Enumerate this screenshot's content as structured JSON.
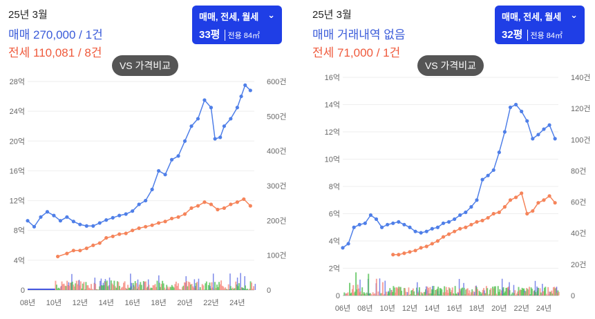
{
  "left": {
    "month": "25년 3월",
    "sale_summary": "매매 270,000 / 1건",
    "lease_summary": "전세 110,081 / 8건",
    "selector": {
      "types": "매매, 전세, 월세",
      "pyeong": "33평",
      "area": "전용 84㎡"
    },
    "vs_button": "VS 가격비교",
    "chevron_icon": "chevron-down-icon"
  },
  "right": {
    "month": "25년 3월",
    "sale_summary": "매매 거래내역 없음",
    "lease_summary": "전세 71,000 / 1건",
    "selector": {
      "types": "매매, 전세, 월세",
      "pyeong": "32평",
      "area": "전용 84㎡"
    },
    "vs_button": "VS 가격비교",
    "chevron_icon": "chevron-down-icon"
  },
  "colors": {
    "sale": "#4f7fe8",
    "lease": "#f5845a",
    "selector_bg": "#1f3ee6",
    "vs_bg": "#555555",
    "vol_sale": "#4456e0",
    "vol_lease": "#f5867a",
    "vol_monthly": "#4cbf4c"
  },
  "chart_data": [
    {
      "type": "line",
      "x_ticks": [
        "08년",
        "10년",
        "12년",
        "14년",
        "16년",
        "18년",
        "20년",
        "22년",
        "24년"
      ],
      "x_range": [
        2008,
        2025.3
      ],
      "y_left_ticks": [
        "0",
        "4억",
        "8억",
        "12억",
        "16억",
        "20억",
        "24억",
        "28억"
      ],
      "y_left_range": [
        0,
        28
      ],
      "y_right_ticks": [
        "0",
        "100건",
        "200건",
        "300건",
        "400건",
        "500건",
        "600건"
      ],
      "y_right_range": [
        0,
        600
      ],
      "series": [
        {
          "name": "매매",
          "axis": "left",
          "points": [
            [
              2008.0,
              9.3
            ],
            [
              2008.5,
              8.5
            ],
            [
              2009.0,
              9.8
            ],
            [
              2009.5,
              10.5
            ],
            [
              2010.0,
              10.0
            ],
            [
              2010.5,
              9.3
            ],
            [
              2011.0,
              9.8
            ],
            [
              2011.5,
              9.2
            ],
            [
              2012.0,
              8.8
            ],
            [
              2012.5,
              8.6
            ],
            [
              2013.0,
              8.6
            ],
            [
              2013.5,
              9.0
            ],
            [
              2014.0,
              9.4
            ],
            [
              2014.5,
              9.7
            ],
            [
              2015.0,
              10.0
            ],
            [
              2015.5,
              10.2
            ],
            [
              2016.0,
              10.6
            ],
            [
              2016.5,
              11.5
            ],
            [
              2017.0,
              12.0
            ],
            [
              2017.5,
              13.5
            ],
            [
              2018.0,
              16.0
            ],
            [
              2018.5,
              15.5
            ],
            [
              2019.0,
              17.5
            ],
            [
              2019.5,
              18.0
            ],
            [
              2020.0,
              20.0
            ],
            [
              2020.5,
              22.0
            ],
            [
              2021.0,
              23.0
            ],
            [
              2021.5,
              25.5
            ],
            [
              2022.0,
              24.5
            ],
            [
              2022.3,
              20.3
            ],
            [
              2022.7,
              20.5
            ],
            [
              2023.0,
              22.0
            ],
            [
              2023.5,
              23.0
            ],
            [
              2024.0,
              24.5
            ],
            [
              2024.3,
              26.0
            ],
            [
              2024.6,
              27.5
            ],
            [
              2025.0,
              26.8
            ]
          ]
        },
        {
          "name": "전세",
          "axis": "left",
          "points": [
            [
              2010.3,
              4.5
            ],
            [
              2011.0,
              4.9
            ],
            [
              2011.5,
              5.3
            ],
            [
              2012.0,
              5.3
            ],
            [
              2012.5,
              5.6
            ],
            [
              2013.0,
              6.0
            ],
            [
              2013.5,
              6.3
            ],
            [
              2014.0,
              7.0
            ],
            [
              2014.5,
              7.2
            ],
            [
              2015.0,
              7.5
            ],
            [
              2015.5,
              7.6
            ],
            [
              2016.0,
              8.0
            ],
            [
              2016.5,
              8.3
            ],
            [
              2017.0,
              8.5
            ],
            [
              2017.5,
              8.7
            ],
            [
              2018.0,
              9.0
            ],
            [
              2018.5,
              9.2
            ],
            [
              2019.0,
              9.6
            ],
            [
              2019.5,
              9.8
            ],
            [
              2020.0,
              10.2
            ],
            [
              2020.5,
              11.0
            ],
            [
              2021.0,
              11.3
            ],
            [
              2021.5,
              11.8
            ],
            [
              2022.0,
              11.5
            ],
            [
              2022.5,
              10.8
            ],
            [
              2023.0,
              11.0
            ],
            [
              2023.5,
              11.5
            ],
            [
              2024.0,
              11.8
            ],
            [
              2024.5,
              12.2
            ],
            [
              2025.0,
              11.3
            ]
          ]
        }
      ]
    },
    {
      "type": "line",
      "x_ticks": [
        "06년",
        "08년",
        "10년",
        "12년",
        "14년",
        "16년",
        "18년",
        "20년",
        "22년",
        "24년"
      ],
      "x_range": [
        2006,
        2025.3
      ],
      "y_left_ticks": [
        "0",
        "2억",
        "4억",
        "6억",
        "8억",
        "10억",
        "12억",
        "14억",
        "16억"
      ],
      "y_left_range": [
        0,
        16
      ],
      "y_right_ticks": [
        "0",
        "20건",
        "40건",
        "60건",
        "80건",
        "100건",
        "120건",
        "140건"
      ],
      "y_right_range": [
        0,
        140
      ],
      "series": [
        {
          "name": "매매",
          "axis": "left",
          "points": [
            [
              2006.0,
              3.5
            ],
            [
              2006.5,
              3.8
            ],
            [
              2007.0,
              5.0
            ],
            [
              2007.5,
              5.2
            ],
            [
              2008.0,
              5.3
            ],
            [
              2008.5,
              5.9
            ],
            [
              2009.0,
              5.6
            ],
            [
              2009.5,
              5.0
            ],
            [
              2010.0,
              5.2
            ],
            [
              2010.5,
              5.3
            ],
            [
              2011.0,
              5.4
            ],
            [
              2011.5,
              5.2
            ],
            [
              2012.0,
              5.0
            ],
            [
              2012.5,
              4.7
            ],
            [
              2013.0,
              4.6
            ],
            [
              2013.5,
              4.7
            ],
            [
              2014.0,
              4.9
            ],
            [
              2014.5,
              5.0
            ],
            [
              2015.0,
              5.3
            ],
            [
              2015.5,
              5.4
            ],
            [
              2016.0,
              5.6
            ],
            [
              2016.5,
              5.9
            ],
            [
              2017.0,
              6.1
            ],
            [
              2017.5,
              6.5
            ],
            [
              2018.0,
              7.0
            ],
            [
              2018.5,
              8.5
            ],
            [
              2019.0,
              8.8
            ],
            [
              2019.5,
              9.2
            ],
            [
              2020.0,
              10.5
            ],
            [
              2020.5,
              12.0
            ],
            [
              2021.0,
              13.8
            ],
            [
              2021.5,
              14.0
            ],
            [
              2022.0,
              13.5
            ],
            [
              2022.5,
              12.8
            ],
            [
              2023.0,
              11.5
            ],
            [
              2023.5,
              11.8
            ],
            [
              2024.0,
              12.2
            ],
            [
              2024.5,
              12.5
            ],
            [
              2025.0,
              11.5
            ]
          ]
        },
        {
          "name": "전세",
          "axis": "left",
          "points": [
            [
              2010.5,
              3.0
            ],
            [
              2011.0,
              3.0
            ],
            [
              2011.5,
              3.1
            ],
            [
              2012.0,
              3.2
            ],
            [
              2012.5,
              3.3
            ],
            [
              2013.0,
              3.5
            ],
            [
              2013.5,
              3.6
            ],
            [
              2014.0,
              3.8
            ],
            [
              2014.5,
              4.0
            ],
            [
              2015.0,
              4.3
            ],
            [
              2015.5,
              4.5
            ],
            [
              2016.0,
              4.7
            ],
            [
              2016.5,
              4.9
            ],
            [
              2017.0,
              5.0
            ],
            [
              2017.5,
              5.2
            ],
            [
              2018.0,
              5.4
            ],
            [
              2018.5,
              5.5
            ],
            [
              2019.0,
              5.7
            ],
            [
              2019.5,
              6.0
            ],
            [
              2020.0,
              6.1
            ],
            [
              2020.5,
              6.5
            ],
            [
              2021.0,
              7.0
            ],
            [
              2021.5,
              7.2
            ],
            [
              2022.0,
              7.5
            ],
            [
              2022.5,
              6.0
            ],
            [
              2023.0,
              6.2
            ],
            [
              2023.5,
              6.8
            ],
            [
              2024.0,
              7.0
            ],
            [
              2024.5,
              7.3
            ],
            [
              2025.0,
              6.8
            ]
          ]
        }
      ]
    }
  ]
}
